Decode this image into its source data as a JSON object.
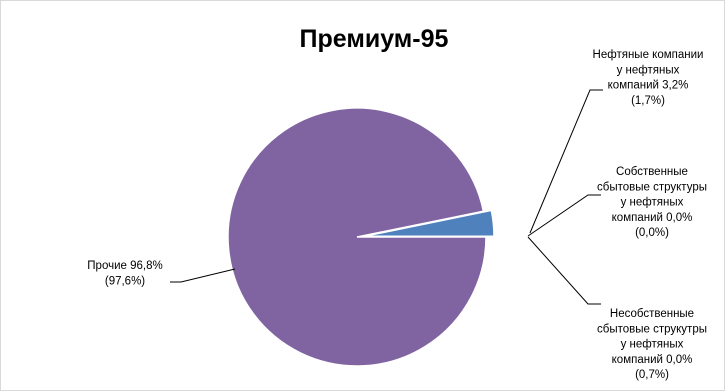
{
  "chart_data": {
    "type": "pie",
    "title": "Премиум-95",
    "slices": [
      {
        "name": "Нефтяные компании у нефтяных компаний",
        "value": 3.2,
        "secondary": 1.7,
        "color": "#4f81bd",
        "label_lines": [
          "Нефтяные компании",
          "у нефтяных",
          "компаний 3,2%",
          "(1,7%)"
        ]
      },
      {
        "name": "Собственные сбытовые структуры у нефтяных компаний",
        "value": 0.0,
        "secondary": 0.0,
        "color": "#c0504d",
        "label_lines": [
          "Собственные",
          "сбытовые структуры",
          "у нефтяных",
          "компаний 0,0%",
          "(0,0%)"
        ]
      },
      {
        "name": "Несобственные сбытовые струкутры у нефтяных компаний",
        "value": 0.0,
        "secondary": 0.7,
        "color": "#9bbb59",
        "label_lines": [
          "Несобственные",
          "сбытовые струкутры",
          "у нефтяных",
          "компаний 0,0%",
          "(0,7%)"
        ]
      },
      {
        "name": "Прочие",
        "value": 96.8,
        "secondary": 97.6,
        "color": "#8064a2",
        "label_lines": [
          "Прочие 96,8%",
          "(97,6%)"
        ]
      }
    ],
    "exploded_slice": "Нефтяные компании у нефтяных компаний",
    "legend": "none"
  }
}
